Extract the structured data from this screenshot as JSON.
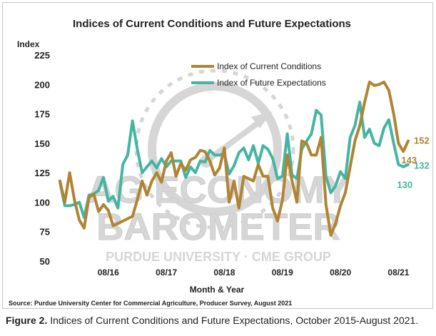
{
  "caption": {
    "label": "Figure 2.",
    "text": "Indices of Current Conditions and Future Expectations, October 2015-August 2021."
  },
  "watermark": {
    "line1": "AG ECONOMY",
    "line2": "BAROMETER",
    "line3": "PURDUE UNIVERSITY  ·  CME GROUP"
  },
  "colors": {
    "current": "#b08433",
    "future": "#45b5a2",
    "watermark": "#cfcfcf"
  },
  "chart_data": {
    "type": "line",
    "title": "Indices of Current Conditions and Future Expectations",
    "ylabel": "Index",
    "xlabel": "Month & Year",
    "source": "Source: Purdue University Center for Commercial Agriculture, Producer Survey, August 2021",
    "ylim": [
      50,
      225
    ],
    "yticks": [
      50,
      75,
      100,
      125,
      150,
      175,
      200,
      225
    ],
    "grid": false,
    "legend": "top-center",
    "x_ticks": [
      {
        "index": 10,
        "label": "08/16"
      },
      {
        "index": 22,
        "label": "08/17"
      },
      {
        "index": 34,
        "label": "08/18"
      },
      {
        "index": 46,
        "label": "08/19"
      },
      {
        "index": 58,
        "label": "08/20"
      },
      {
        "index": 70,
        "label": "08/21"
      }
    ],
    "series": [
      {
        "name": "Index of Current Conditions",
        "values": [
          118,
          100,
          125,
          102,
          85,
          78,
          104,
          107,
          92,
          98,
          93,
          80,
          82,
          84,
          86,
          88,
          102,
          118,
          106,
          118,
          125,
          117,
          135,
          142,
          122,
          133,
          127,
          136,
          138,
          144,
          143,
          135,
          123,
          129,
          146,
          100,
          118,
          95,
          122,
          120,
          118,
          132,
          122,
          122,
          95,
          84,
          102,
          140,
          118,
          100,
          152,
          150,
          140,
          140,
          155,
          98,
          72,
          82,
          97,
          108,
          130,
          152,
          165,
          185,
          202,
          199,
          200,
          202,
          195,
          175,
          150,
          143,
          152
        ],
        "end_label": "152",
        "mid_label": "143"
      },
      {
        "name": "Index of Future Expectations",
        "values": [
          117,
          97,
          97,
          98,
          100,
          87,
          106,
          107,
          110,
          121,
          101,
          105,
          95,
          132,
          140,
          169,
          145,
          125,
          130,
          135,
          129,
          137,
          130,
          135,
          135,
          135,
          121,
          130,
          125,
          135,
          134,
          144,
          140,
          140,
          141,
          124,
          131,
          142,
          146,
          136,
          148,
          133,
          148,
          145,
          137,
          120,
          122,
          158,
          123,
          120,
          145,
          152,
          158,
          178,
          174,
          122,
          108,
          114,
          126,
          120,
          155,
          165,
          185,
          155,
          162,
          150,
          148,
          163,
          170,
          150,
          132,
          130,
          132
        ],
        "end_label": "132",
        "mid_label": "130"
      }
    ]
  }
}
